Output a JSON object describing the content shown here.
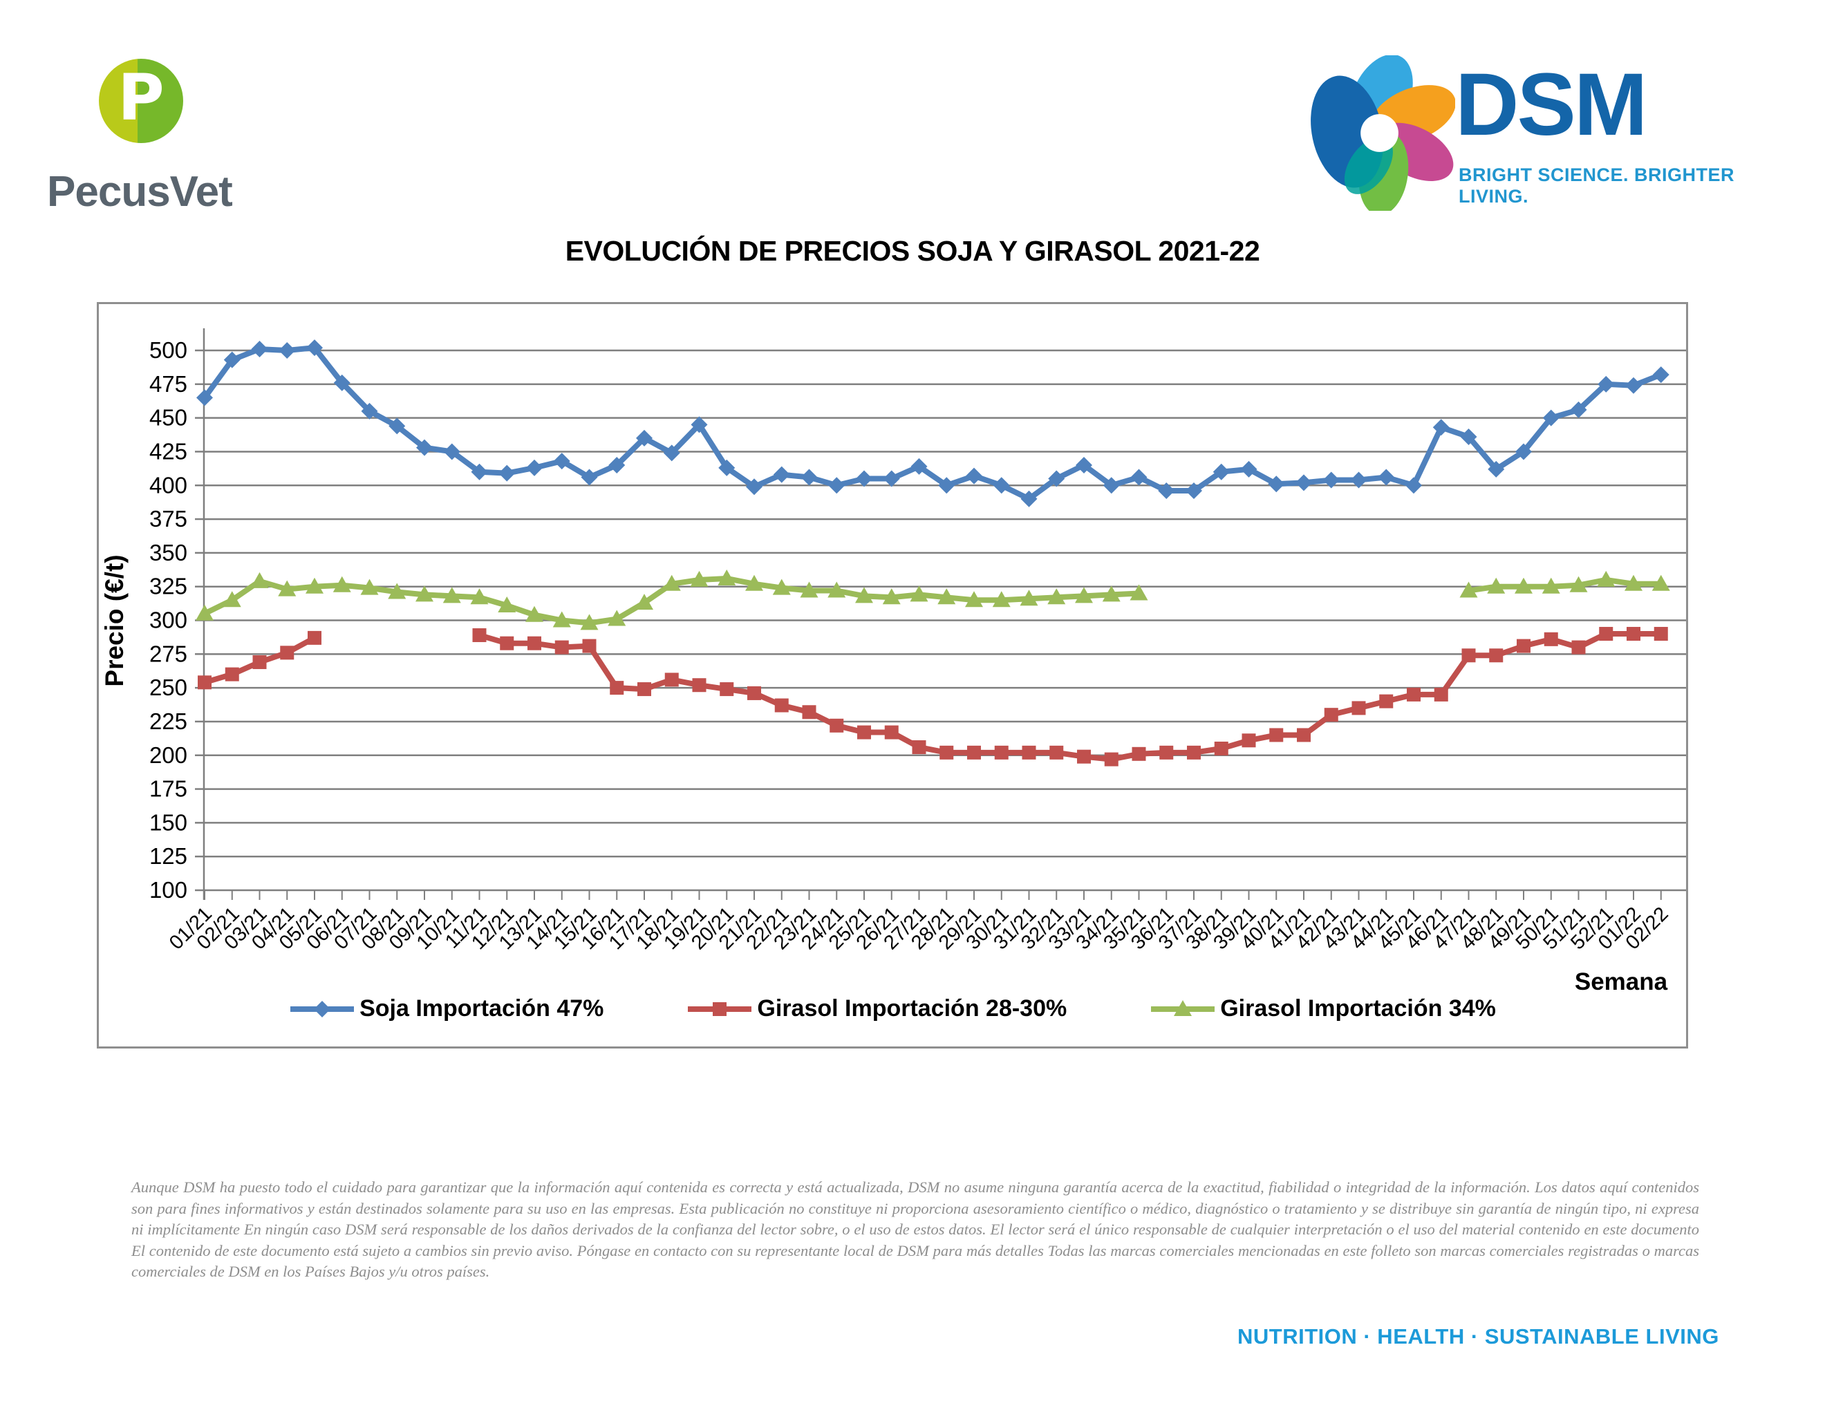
{
  "header": {
    "pecusvet": {
      "name": "PecusVet",
      "logo_letter": "P",
      "logo_left_color": "#b9ca1a",
      "logo_right_color": "#76b82a",
      "text_color": "#59646E"
    },
    "dsm": {
      "name": "DSM",
      "tagline": "BRIGHT SCIENCE. BRIGHTER LIVING.",
      "name_color": "#1465A9",
      "tagline_color": "#2196CF"
    }
  },
  "title": "EVOLUCIÓN DE PRECIOS SOJA Y GIRASOL 2021-22",
  "chart_data": {
    "type": "line",
    "title": "EVOLUCIÓN DE PRECIOS SOJA Y GIRASOL 2021-22",
    "xlabel": "Semana",
    "ylabel": "Precio (€/t)",
    "ylim": [
      100,
      500
    ],
    "ytick_step": 25,
    "grid": true,
    "legend_position": "bottom",
    "gridline_color": "#7F7F7F",
    "categories": [
      "01/21",
      "02/21",
      "03/21",
      "04/21",
      "05/21",
      "06/21",
      "07/21",
      "08/21",
      "09/21",
      "10/21",
      "11/21",
      "12/21",
      "13/21",
      "14/21",
      "15/21",
      "16/21",
      "17/21",
      "18/21",
      "19/21",
      "20/21",
      "21/21",
      "22/21",
      "23/21",
      "24/21",
      "25/21",
      "26/21",
      "27/21",
      "28/21",
      "29/21",
      "30/21",
      "31/21",
      "32/21",
      "33/21",
      "34/21",
      "35/21",
      "36/21",
      "37/21",
      "38/21",
      "39/21",
      "40/21",
      "41/21",
      "42/21",
      "43/21",
      "44/21",
      "45/21",
      "46/21",
      "47/21",
      "48/21",
      "49/21",
      "50/21",
      "51/21",
      "52/21",
      "01/22",
      "02/22"
    ],
    "series": [
      {
        "name": "Soja Importación 47%",
        "color": "#4F81BD",
        "marker": "diamond",
        "values": [
          465,
          493,
          501,
          500,
          502,
          476,
          455,
          444,
          428,
          425,
          410,
          409,
          413,
          418,
          406,
          415,
          435,
          424,
          445,
          413,
          399,
          408,
          406,
          400,
          405,
          405,
          414,
          400,
          407,
          400,
          390,
          405,
          415,
          400,
          406,
          396,
          396,
          410,
          412,
          401,
          402,
          404,
          404,
          406,
          400,
          443,
          436,
          412,
          425,
          450,
          456,
          475,
          474,
          482
        ]
      },
      {
        "name": "Girasol Importación 28-30%",
        "color": "#C0504D",
        "marker": "square",
        "values": [
          254,
          260,
          269,
          276,
          287,
          null,
          null,
          null,
          null,
          null,
          289,
          283,
          283,
          280,
          281,
          250,
          249,
          256,
          252,
          249,
          246,
          237,
          232,
          222,
          217,
          217,
          206,
          202,
          202,
          202,
          202,
          202,
          199,
          197,
          201,
          202,
          202,
          205,
          211,
          215,
          215,
          230,
          235,
          240,
          245,
          245,
          274,
          274,
          281,
          286,
          280,
          290,
          290,
          290
        ]
      },
      {
        "name": "Girasol Importación 34%",
        "color": "#9BBB59",
        "marker": "triangle",
        "values": [
          305,
          315,
          329,
          323,
          325,
          326,
          324,
          321,
          319,
          318,
          317,
          311,
          304,
          300,
          298,
          301,
          313,
          327,
          330,
          331,
          327,
          324,
          322,
          322,
          318,
          317,
          319,
          317,
          315,
          315,
          316,
          317,
          318,
          319,
          320,
          null,
          null,
          null,
          null,
          null,
          null,
          null,
          null,
          null,
          null,
          null,
          322,
          325,
          325,
          325,
          326,
          330,
          327,
          327
        ]
      }
    ]
  },
  "footer": {
    "disclaimer": "Aunque DSM ha puesto todo el cuidado para garantizar que la información aquí contenida es correcta y está actualizada, DSM no asume ninguna garantía acerca de la exactitud, fiabilidad o integridad de la información. Los datos aquí contenidos son para fines informativos y están destinados solamente para su uso en las empresas. Esta publicación no constituye ni proporciona asesoramiento científico o médico, diagnóstico o tratamiento y se distribuye sin garantía de ningún tipo, ni expresa ni implícitamente En ningún caso DSM será responsable de los daños derivados de la confianza del lector sobre, o el uso de estos datos. El lector será el único responsable de cualquier interpretación o el uso del material contenido en este documento El contenido de este documento está sujeto a cambios sin previo aviso. Póngase en contacto con su representante local de DSM para más detalles Todas las marcas comerciales mencionadas en este folleto son marcas comerciales registradas o marcas comerciales de DSM en los Países Bajos y/u otros países.",
    "tagline": "NUTRITION · HEALTH · SUSTAINABLE LIVING",
    "tagline_color": "#1C9AD9"
  }
}
